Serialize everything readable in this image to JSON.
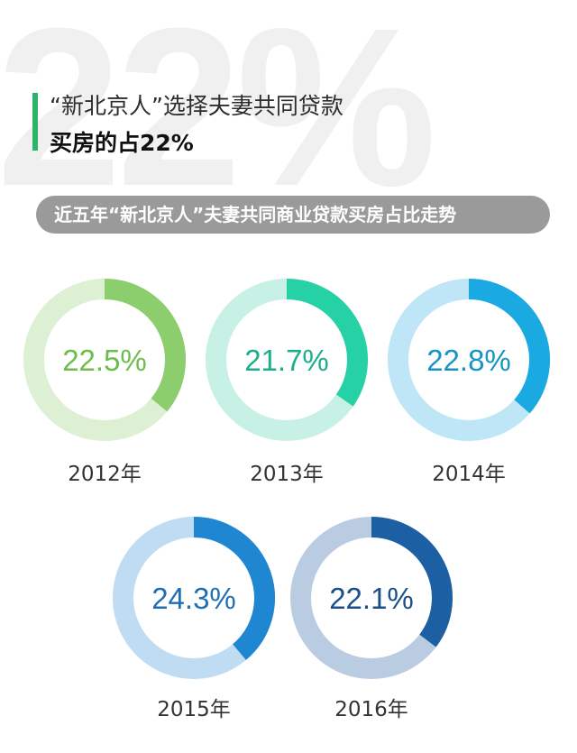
{
  "watermark": "22%",
  "title": {
    "line1": "“新北京人”选择夫妻共同贷款",
    "line2": "买房的占22%"
  },
  "subtitle": "近五年“新北京人”夫妻共同商业贷款买房占比走势",
  "chart_data": {
    "type": "pie",
    "series": [
      {
        "year": "2012年",
        "value": 22.5,
        "label": "22.5%",
        "color": "#8ccd6d",
        "track": "#ddf0d3",
        "text_color": "#6cbd4c"
      },
      {
        "year": "2013年",
        "value": 21.7,
        "label": "21.7%",
        "color": "#27d1a6",
        "track": "#c8f1e6",
        "text_color": "#1bae8b"
      },
      {
        "year": "2014年",
        "value": 22.8,
        "label": "22.8%",
        "color": "#1aa9e0",
        "track": "#bee6f6",
        "text_color": "#1694c4"
      },
      {
        "year": "2015年",
        "value": 24.3,
        "label": "24.3%",
        "color": "#1f86d2",
        "track": "#bfdcf2",
        "text_color": "#1e6fb3"
      },
      {
        "year": "2016年",
        "value": 22.1,
        "label": "22.1%",
        "color": "#1c5fa3",
        "track": "#bacce2",
        "text_color": "#1b4f8a"
      }
    ]
  }
}
